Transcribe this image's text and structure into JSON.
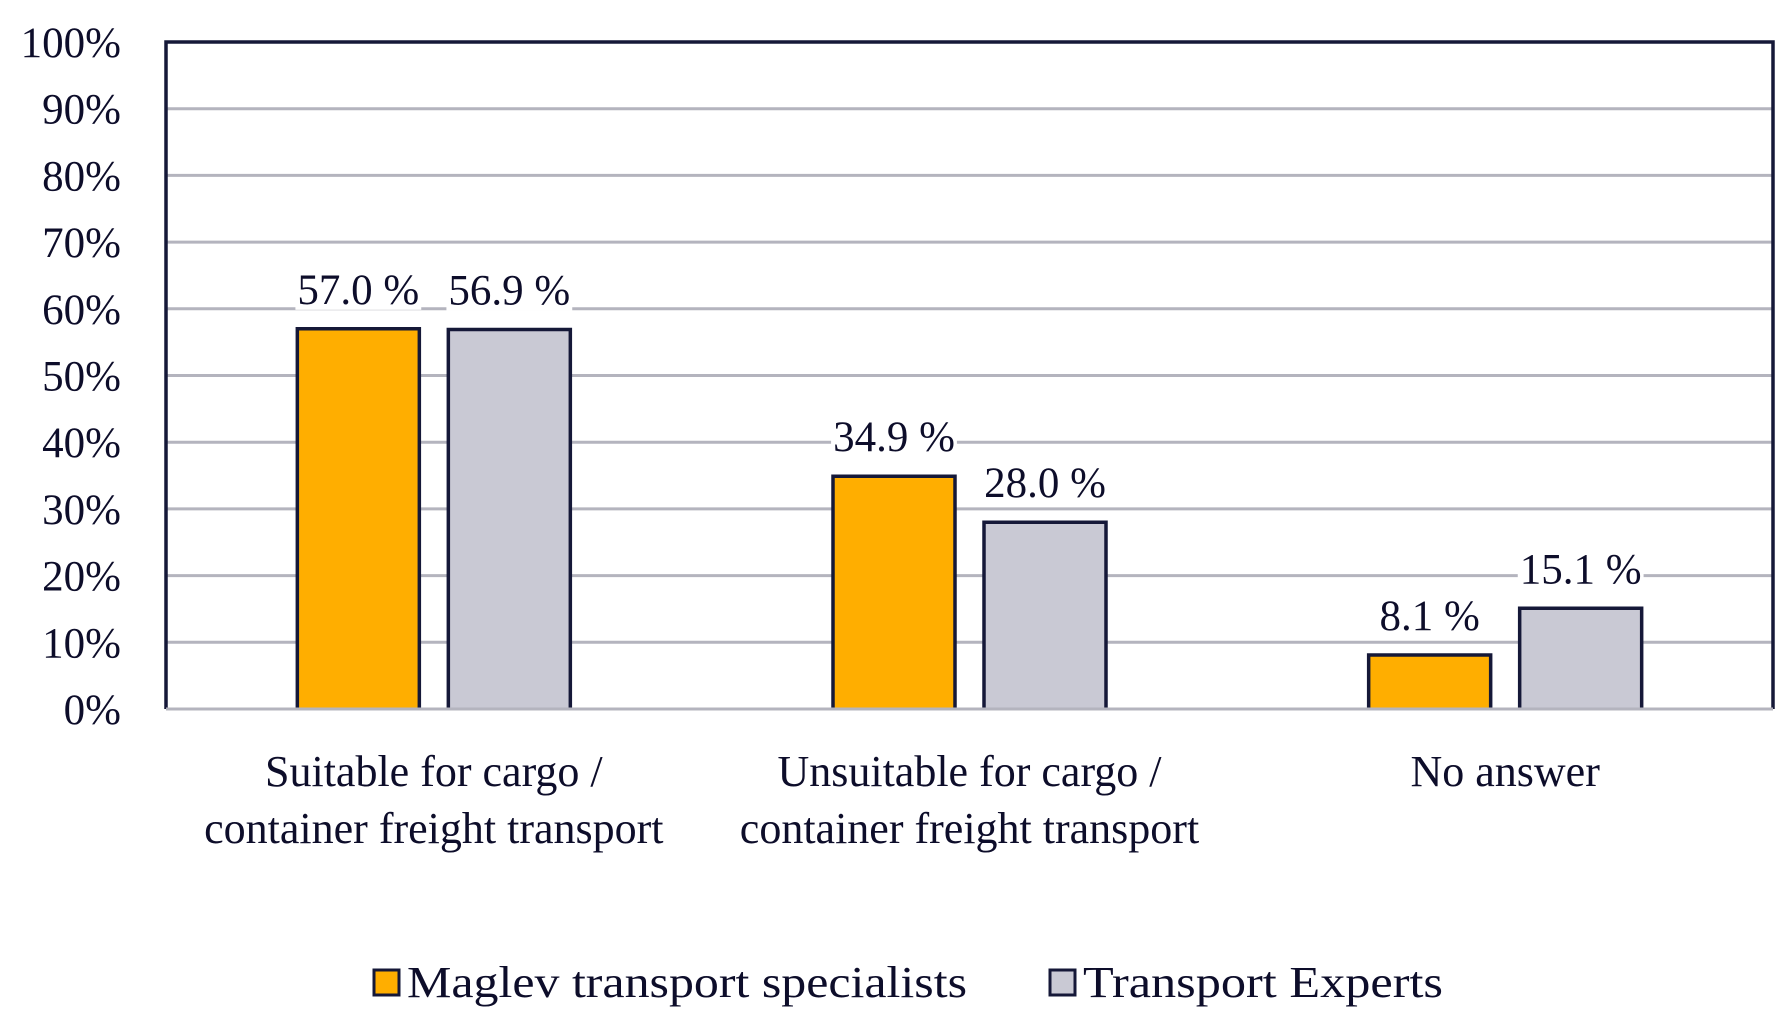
{
  "chart_data": {
    "type": "bar",
    "title": "",
    "xlabel": "",
    "ylabel": "",
    "ylim": [
      0,
      100
    ],
    "y_tick_values": [
      0,
      10,
      20,
      30,
      40,
      50,
      60,
      70,
      80,
      90,
      100
    ],
    "y_tick_labels": [
      "0%",
      "10%",
      "20%",
      "30%",
      "40%",
      "50%",
      "60%",
      "70%",
      "80%",
      "90%",
      "100%"
    ],
    "grid": true,
    "legend_position": "bottom",
    "categories": [
      [
        "Suitable for cargo /",
        "container freight transport"
      ],
      [
        "Unsuitable for cargo /",
        "container freight transport"
      ],
      [
        "No answer"
      ]
    ],
    "series": [
      {
        "name": "Maglev transport specialists",
        "color": "#FFAE00",
        "values": [
          57.0,
          34.9,
          8.1
        ],
        "labels": [
          "57.0 %",
          "34.9 %",
          "8.1 %"
        ]
      },
      {
        "name": "Transport Experts",
        "color": "#C9C9D4",
        "values": [
          56.9,
          28.0,
          15.1
        ],
        "labels": [
          "56.9 %",
          "28.0 %",
          "15.1 %"
        ]
      }
    ],
    "colors": {
      "bar_border": "#151838",
      "grid": "#B4B4BE",
      "axis": "#151838",
      "text": "#0d0d2a"
    }
  }
}
